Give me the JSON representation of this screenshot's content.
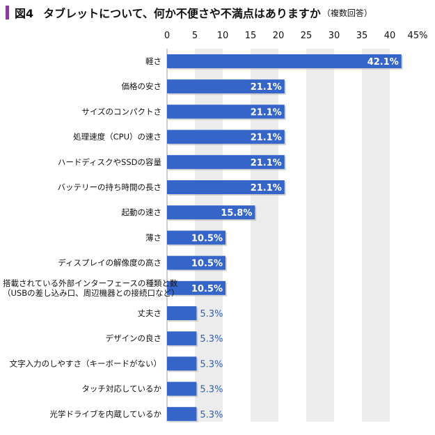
{
  "title": {
    "figure_label": "図4",
    "text": "タブレットについて、何か不便さや不満点はありますか",
    "note": "（複数回答）"
  },
  "colors": {
    "accent": "#8a3e9a",
    "bar": "#3565c8",
    "band": "#ececec",
    "value_outside": "#2d5fb0"
  },
  "chart_data": {
    "type": "bar",
    "orientation": "horizontal",
    "categories": [
      "軽さ",
      "価格の安さ",
      "サイズのコンパクトさ",
      "処理速度（CPU）の速さ",
      "ハードディスクやSSDの容量",
      "バッテリーの持ち時間の長さ",
      "起動の速さ",
      "薄さ",
      "ディスプレイの解像度の高さ",
      "搭載されている外部インターフェースの種類と数\n（USBの差し込み口、周辺機器との接続口など）",
      "丈夫さ",
      "デザインの良さ",
      "文字入力のしやすさ（キーボードがない）",
      "タッチ対応しているか",
      "光学ドライブを内蔵しているか"
    ],
    "values": [
      42.1,
      21.1,
      21.1,
      21.1,
      21.1,
      21.1,
      15.8,
      10.5,
      10.5,
      10.5,
      5.3,
      5.3,
      5.3,
      5.3,
      5.3
    ],
    "value_labels": [
      "42.1%",
      "21.1%",
      "21.1%",
      "21.1%",
      "21.1%",
      "21.1%",
      "15.8%",
      "10.5%",
      "10.5%",
      "10.5%",
      "5.3%",
      "5.3%",
      "5.3%",
      "5.3%",
      "5.3%"
    ],
    "x_ticks": [
      "0",
      "5",
      "10",
      "15",
      "20",
      "25",
      "30",
      "35",
      "40",
      "45%"
    ],
    "xlim": [
      0,
      45
    ],
    "axis_position": "top",
    "grid": "alternating vertical bands",
    "legend": "none"
  }
}
